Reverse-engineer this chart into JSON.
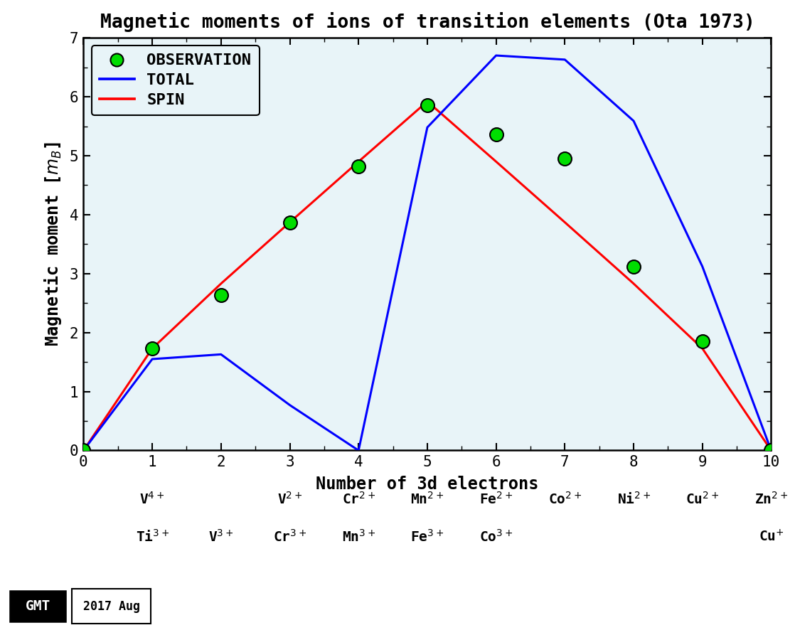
{
  "title": "Magnetic moments of ions of transition elements (Ota 1973)",
  "xlabel": "Number of 3d electrons",
  "xlim": [
    0,
    10
  ],
  "ylim": [
    0,
    7
  ],
  "background_color": "#e8f4f8",
  "spin_x": [
    0,
    1,
    2,
    3,
    4,
    5,
    6,
    7,
    8,
    9,
    10
  ],
  "spin_y": [
    0,
    1.73,
    2.83,
    3.87,
    4.9,
    5.92,
    4.9,
    3.87,
    2.83,
    1.73,
    0
  ],
  "total_x": [
    0,
    1,
    2,
    3,
    4,
    5,
    6,
    7,
    8,
    9,
    10
  ],
  "total_y": [
    0,
    1.55,
    1.63,
    0.77,
    0.0,
    5.48,
    6.7,
    6.63,
    5.59,
    3.12,
    0.0
  ],
  "obs_x": [
    0,
    1,
    2,
    3,
    4,
    5,
    6,
    7,
    8,
    9,
    10
  ],
  "obs_y": [
    0,
    1.73,
    2.63,
    3.87,
    4.82,
    5.86,
    5.36,
    4.95,
    3.12,
    1.85,
    0.0
  ],
  "spin_color": "#ff0000",
  "total_color": "#0000ff",
  "obs_color": "#00dd00",
  "obs_edge_color": "#000000",
  "line_width": 2.2,
  "marker_size": 13,
  "yticks": [
    0,
    1,
    2,
    3,
    4,
    5,
    6,
    7
  ],
  "xticks": [
    0,
    1,
    2,
    3,
    4,
    5,
    6,
    7,
    8,
    9,
    10
  ],
  "title_fontsize": 19,
  "axis_label_fontsize": 17,
  "tick_fontsize": 15,
  "legend_fontsize": 16,
  "footer_text": "2017 Aug"
}
